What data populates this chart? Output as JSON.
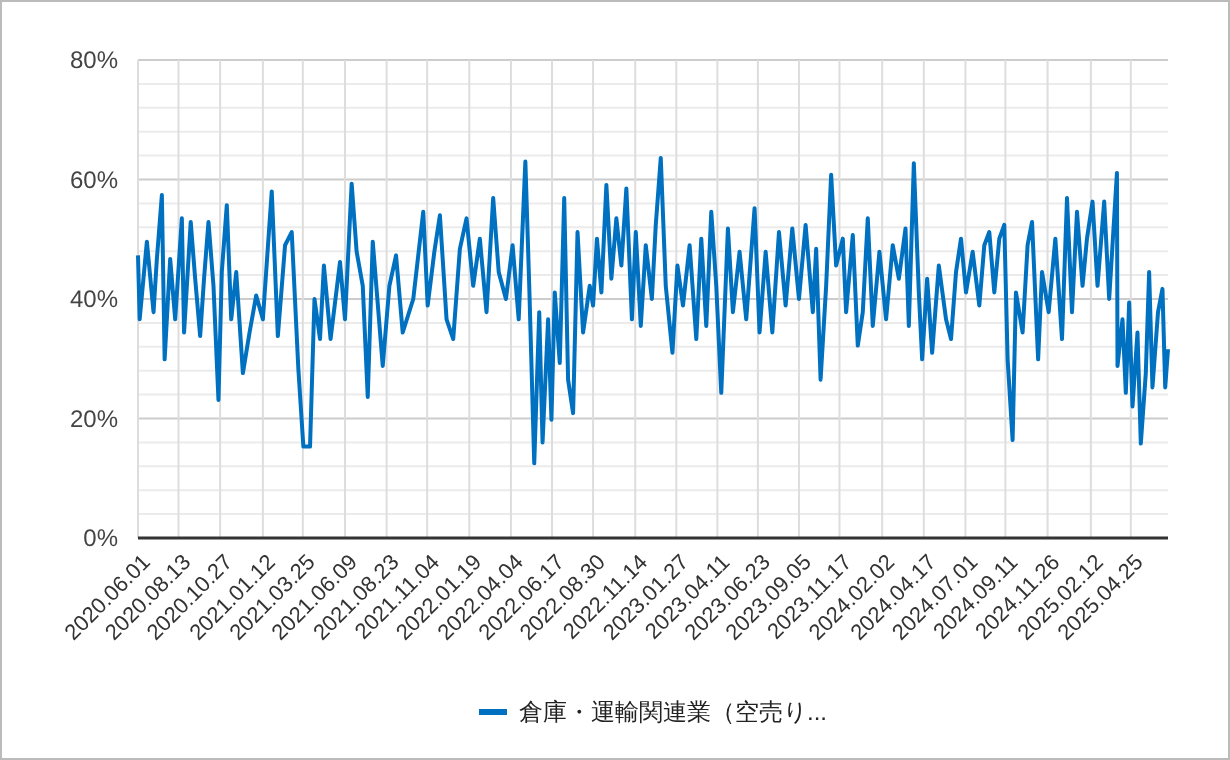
{
  "chart_data": {
    "type": "line",
    "legend": "bottom",
    "grid": true,
    "marker": "none",
    "line_style": "solid",
    "xlim": [
      "2020-06-01",
      "2025-07-01"
    ],
    "xticks": [
      {
        "value": "2020-06-01",
        "label": "2020.06.01"
      },
      {
        "value": "2020-08-13",
        "label": "2020.08.13"
      },
      {
        "value": "2020-10-27",
        "label": "2020.10.27"
      },
      {
        "value": "2021-01-12",
        "label": "2021.01.12"
      },
      {
        "value": "2021-03-25",
        "label": "2021.03.25"
      },
      {
        "value": "2021-06-09",
        "label": "2021.06.09"
      },
      {
        "value": "2021-08-23",
        "label": "2021.08.23"
      },
      {
        "value": "2021-11-04",
        "label": "2021.11.04"
      },
      {
        "value": "2022-01-19",
        "label": "2022.01.19"
      },
      {
        "value": "2022-04-04",
        "label": "2022.04.04"
      },
      {
        "value": "2022-06-17",
        "label": "2022.06.17"
      },
      {
        "value": "2022-08-30",
        "label": "2022.08.30"
      },
      {
        "value": "2022-11-14",
        "label": "2022.11.14"
      },
      {
        "value": "2023-01-27",
        "label": "2023.01.27"
      },
      {
        "value": "2023-04-11",
        "label": "2023.04.11"
      },
      {
        "value": "2023-06-23",
        "label": "2023.06.23"
      },
      {
        "value": "2023-09-05",
        "label": "2023.09.05"
      },
      {
        "value": "2023-11-17",
        "label": "2023.11.17"
      },
      {
        "value": "2024-02-02",
        "label": "2024.02.02"
      },
      {
        "value": "2024-04-17",
        "label": "2024.04.17"
      },
      {
        "value": "2024-07-01",
        "label": "2024.07.01"
      },
      {
        "value": "2024-09-11",
        "label": "2024.09.11"
      },
      {
        "value": "2024-11-26",
        "label": "2024.11.26"
      },
      {
        "value": "2025-02-12",
        "label": "2025.02.12"
      },
      {
        "value": "2025-04-25",
        "label": "2025.04.25"
      }
    ],
    "ylim": [
      0,
      80
    ],
    "yticks": [
      {
        "value": 0,
        "label": "0%"
      },
      {
        "value": 4,
        "label": null
      },
      {
        "value": 8,
        "label": null
      },
      {
        "value": 12,
        "label": null
      },
      {
        "value": 16,
        "label": null
      },
      {
        "value": 20,
        "label": "20%"
      },
      {
        "value": 24,
        "label": null
      },
      {
        "value": 28,
        "label": null
      },
      {
        "value": 32,
        "label": null
      },
      {
        "value": 36,
        "label": null
      },
      {
        "value": 40,
        "label": "40%"
      },
      {
        "value": 44,
        "label": null
      },
      {
        "value": 48,
        "label": null
      },
      {
        "value": 52,
        "label": null
      },
      {
        "value": 56,
        "label": null
      },
      {
        "value": 60,
        "label": "60%"
      },
      {
        "value": 64,
        "label": null
      },
      {
        "value": 68,
        "label": null
      },
      {
        "value": 72,
        "label": null
      },
      {
        "value": 76,
        "label": null
      },
      {
        "value": 80,
        "label": "80%"
      }
    ],
    "series": [
      {
        "name": "倉庫・運輸関連業（空売り...",
        "color": "#0070c0",
        "x": [
          "2020-06-01",
          "2020-06-04",
          "2020-06-17",
          "2020-06-29",
          "2020-07-05",
          "2020-07-14",
          "2020-07-19",
          "2020-07-29",
          "2020-08-07",
          "2020-08-19",
          "2020-08-23",
          "2020-09-04",
          "2020-09-12",
          "2020-09-21",
          "2020-09-28",
          "2020-10-06",
          "2020-10-15",
          "2020-10-24",
          "2020-10-30",
          "2020-11-08",
          "2020-11-16",
          "2020-11-25",
          "2020-12-07",
          "2020-12-19",
          "2020-12-31",
          "2021-01-12",
          "2021-01-28",
          "2021-02-08",
          "2021-02-21",
          "2021-03-05",
          "2021-03-17",
          "2021-03-26",
          "2021-04-07",
          "2021-04-15",
          "2021-04-25",
          "2021-05-02",
          "2021-05-14",
          "2021-05-31",
          "2021-06-09",
          "2021-06-21",
          "2021-06-30",
          "2021-07-11",
          "2021-07-20",
          "2021-07-29",
          "2021-08-16",
          "2021-08-28",
          "2021-09-09",
          "2021-09-21",
          "2021-10-10",
          "2021-10-28",
          "2021-11-05",
          "2021-11-17",
          "2021-11-27",
          "2021-12-09",
          "2021-12-21",
          "2022-01-02",
          "2022-01-14",
          "2022-01-26",
          "2022-02-07",
          "2022-02-19",
          "2022-03-03",
          "2022-03-13",
          "2022-03-26",
          "2022-04-07",
          "2022-04-18",
          "2022-04-30",
          "2022-05-07",
          "2022-05-16",
          "2022-05-25",
          "2022-05-31",
          "2022-06-10",
          "2022-06-16",
          "2022-06-22",
          "2022-07-01",
          "2022-07-09",
          "2022-07-16",
          "2022-07-25",
          "2022-08-02",
          "2022-08-12",
          "2022-08-24",
          "2022-08-30",
          "2022-09-06",
          "2022-09-14",
          "2022-09-23",
          "2022-10-02",
          "2022-10-11",
          "2022-10-20",
          "2022-10-29",
          "2022-11-08",
          "2022-11-15",
          "2022-11-24",
          "2022-12-03",
          "2022-12-14",
          "2022-12-21",
          "2022-12-30",
          "2023-01-08",
          "2023-01-20",
          "2023-01-29",
          "2023-02-08",
          "2023-02-20",
          "2023-03-04",
          "2023-03-13",
          "2023-03-22",
          "2023-03-31",
          "2023-04-09",
          "2023-04-18",
          "2023-04-30",
          "2023-05-09",
          "2023-05-21",
          "2023-06-02",
          "2023-06-17",
          "2023-06-26",
          "2023-07-07",
          "2023-07-19",
          "2023-07-31",
          "2023-08-12",
          "2023-08-24",
          "2023-09-05",
          "2023-09-17",
          "2023-09-30",
          "2023-10-06",
          "2023-10-14",
          "2023-10-24",
          "2023-11-02",
          "2023-11-11",
          "2023-11-23",
          "2023-11-29",
          "2023-12-11",
          "2023-12-20",
          "2023-12-29",
          "2024-01-07",
          "2024-01-16",
          "2024-01-28",
          "2024-02-09",
          "2024-02-21",
          "2024-03-03",
          "2024-03-15",
          "2024-03-21",
          "2024-03-30",
          "2024-04-08",
          "2024-04-14",
          "2024-04-23",
          "2024-05-02",
          "2024-05-14",
          "2024-05-27",
          "2024-06-05",
          "2024-06-14",
          "2024-06-23",
          "2024-07-02",
          "2024-07-14",
          "2024-07-26",
          "2024-08-04",
          "2024-08-13",
          "2024-08-22",
          "2024-08-31",
          "2024-09-09",
          "2024-09-15",
          "2024-09-24",
          "2024-09-30",
          "2024-10-12",
          "2024-10-21",
          "2024-10-29",
          "2024-11-09",
          "2024-11-16",
          "2024-11-28",
          "2024-12-10",
          "2024-12-22",
          "2024-12-31",
          "2025-01-09",
          "2025-01-18",
          "2025-01-28",
          "2025-02-05",
          "2025-02-15",
          "2025-02-24",
          "2025-03-08",
          "2025-03-17",
          "2025-03-31",
          "2025-04-01",
          "2025-04-10",
          "2025-04-16",
          "2025-04-22",
          "2025-04-28",
          "2025-05-07",
          "2025-05-13",
          "2025-05-22",
          "2025-05-28",
          "2025-06-03",
          "2025-06-13",
          "2025-06-21",
          "2025-06-26",
          "2025-07-01"
        ],
        "values": [
          47.3,
          36.6,
          49.6,
          37.8,
          46.7,
          57.4,
          29.9,
          46.7,
          36.6,
          53.5,
          34.4,
          52.9,
          43.4,
          33.8,
          43.4,
          52.9,
          42.2,
          23.1,
          44.5,
          55.7,
          36.6,
          44.5,
          27.6,
          34.4,
          40.6,
          36.6,
          58.0,
          33.8,
          49.0,
          51.2,
          28.2,
          15.3,
          15.3,
          40.0,
          33.3,
          45.6,
          33.3,
          46.2,
          36.6,
          59.3,
          47.9,
          42.2,
          23.6,
          49.6,
          28.8,
          42.2,
          47.3,
          34.4,
          40.0,
          54.6,
          38.9,
          47.9,
          54.0,
          36.6,
          33.3,
          48.4,
          53.5,
          42.2,
          50.1,
          37.8,
          56.9,
          44.5,
          40.0,
          49.0,
          36.6,
          63.0,
          42.2,
          12.5,
          37.8,
          16.0,
          36.6,
          19.8,
          41.1,
          29.3,
          56.9,
          26.5,
          20.9,
          51.2,
          34.4,
          42.2,
          38.9,
          50.1,
          41.1,
          59.1,
          43.4,
          53.5,
          45.6,
          58.5,
          36.6,
          51.2,
          35.5,
          49.0,
          40.0,
          52.4,
          63.6,
          42.2,
          31.0,
          45.6,
          38.9,
          49.0,
          33.3,
          50.1,
          35.5,
          54.6,
          42.2,
          24.3,
          51.8,
          37.8,
          47.9,
          36.6,
          55.2,
          34.4,
          47.9,
          34.4,
          51.2,
          38.9,
          51.8,
          40.0,
          52.4,
          37.8,
          48.4,
          26.5,
          42.2,
          60.8,
          45.6,
          50.1,
          37.8,
          50.7,
          32.2,
          37.8,
          53.5,
          35.5,
          47.9,
          36.6,
          49.0,
          43.4,
          51.8,
          35.5,
          62.7,
          41.1,
          29.9,
          43.4,
          31.0,
          45.6,
          36.6,
          33.3,
          44.5,
          50.1,
          41.1,
          47.9,
          38.9,
          49.0,
          51.2,
          41.1,
          50.1,
          52.4,
          29.9,
          16.4,
          41.1,
          34.4,
          49.0,
          52.9,
          29.9,
          44.5,
          37.8,
          50.1,
          33.3,
          56.9,
          37.8,
          54.6,
          42.2,
          50.1,
          56.3,
          42.2,
          56.3,
          40.0,
          61.1,
          28.8,
          36.6,
          24.3,
          39.4,
          22.0,
          34.4,
          15.8,
          27.6,
          44.5,
          25.2,
          37.8,
          41.7,
          25.2,
          31.6
        ]
      }
    ]
  }
}
